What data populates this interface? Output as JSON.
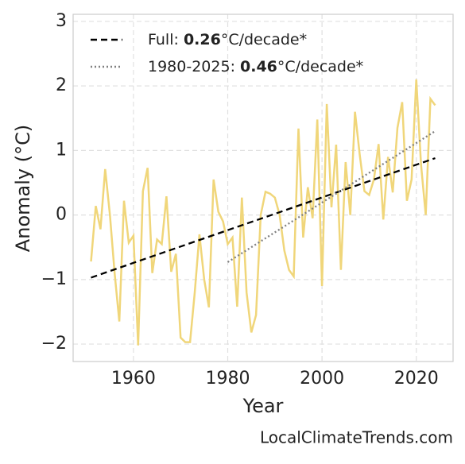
{
  "chart_data": {
    "type": "line",
    "xlabel": "Year",
    "ylabel": "Anomaly (°C)",
    "footer": "LocalClimateTrends.com",
    "x": [
      1951,
      1952,
      1953,
      1954,
      1955,
      1956,
      1957,
      1958,
      1959,
      1960,
      1961,
      1962,
      1963,
      1964,
      1965,
      1966,
      1967,
      1968,
      1969,
      1970,
      1971,
      1972,
      1973,
      1974,
      1975,
      1976,
      1977,
      1978,
      1979,
      1980,
      1981,
      1982,
      1983,
      1984,
      1985,
      1986,
      1987,
      1988,
      1989,
      1990,
      1991,
      1992,
      1993,
      1994,
      1995,
      1996,
      1997,
      1998,
      1999,
      2000,
      2001,
      2002,
      2003,
      2004,
      2005,
      2006,
      2007,
      2008,
      2009,
      2010,
      2011,
      2012,
      2013,
      2014,
      2015,
      2016,
      2017,
      2018,
      2019,
      2020,
      2021,
      2022,
      2023,
      2024
    ],
    "series": [
      {
        "color": "#f0d67a",
        "values": [
          -0.72,
          0.14,
          -0.22,
          0.71,
          0.0,
          -0.9,
          -1.65,
          0.22,
          -0.43,
          -0.32,
          -2.02,
          0.37,
          0.73,
          -0.9,
          -0.38,
          -0.45,
          0.29,
          -0.88,
          -0.6,
          -1.9,
          -1.97,
          -1.97,
          -1.2,
          -0.3,
          -1.0,
          -1.43,
          0.55,
          0.05,
          -0.1,
          -0.45,
          -0.35,
          -1.42,
          0.27,
          -1.2,
          -1.82,
          -1.55,
          0.0,
          0.36,
          0.33,
          0.27,
          0.0,
          -0.55,
          -0.85,
          -0.95,
          1.34,
          -0.35,
          0.43,
          -0.05,
          1.48,
          -1.1,
          1.72,
          0.12,
          1.09,
          -0.85,
          0.82,
          0.0,
          1.6,
          0.93,
          0.37,
          0.31,
          0.55,
          1.1,
          -0.07,
          0.9,
          0.35,
          1.35,
          1.75,
          0.22,
          0.55,
          2.1,
          0.78,
          0.0,
          1.8,
          1.7
        ]
      },
      {
        "name": [
          "Full: ",
          "0.26",
          "°C/decade*"
        ],
        "color": "#000000",
        "dash": "dashed",
        "x": [
          1951,
          2024
        ],
        "values": [
          -0.97,
          0.88
        ]
      },
      {
        "name": [
          "1980-2025: ",
          "0.46",
          "°C/decade*"
        ],
        "color": "#808080",
        "dash": "dotted",
        "x": [
          1980,
          2024
        ],
        "values": [
          -0.73,
          1.3
        ]
      }
    ],
    "xlim": [
      1947.2,
      2027.8
    ],
    "xticks": [
      1960,
      1980,
      2000,
      2020
    ],
    "ylim": [
      -2.27,
      3.11
    ],
    "yticks": [
      3,
      2,
      1,
      0,
      {
        "value": -1,
        "label": "−1"
      },
      {
        "value": -2,
        "label": "−2"
      }
    ],
    "grid": true,
    "legend": "upper left"
  }
}
